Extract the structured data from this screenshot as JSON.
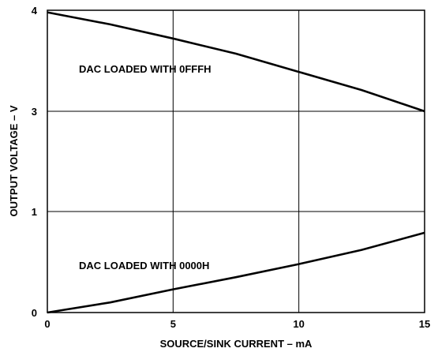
{
  "chart_data": {
    "type": "line",
    "xlabel": "SOURCE/SINK CURRENT – mA",
    "ylabel": "OUTPUT VOLTAGE – V",
    "xlim": [
      0,
      15
    ],
    "x_ticks": [
      0,
      5,
      10,
      15
    ],
    "y_ticks": [
      "0",
      "1",
      "3",
      "4"
    ],
    "y_tick_values": [
      0,
      1,
      3,
      4
    ],
    "grid": true,
    "series": [
      {
        "name": "DAC LOADED WITH 0FFFH",
        "x": [
          0,
          2.5,
          5,
          7.5,
          10,
          12.5,
          15
        ],
        "y": [
          3.98,
          3.86,
          3.72,
          3.57,
          3.39,
          3.21,
          3.0
        ]
      },
      {
        "name": "DAC LOADED WITH 0000H",
        "x": [
          0,
          2.5,
          5,
          7.5,
          10,
          12.5,
          15
        ],
        "y": [
          0.0,
          0.1,
          0.23,
          0.35,
          0.48,
          0.62,
          0.79
        ]
      }
    ]
  }
}
